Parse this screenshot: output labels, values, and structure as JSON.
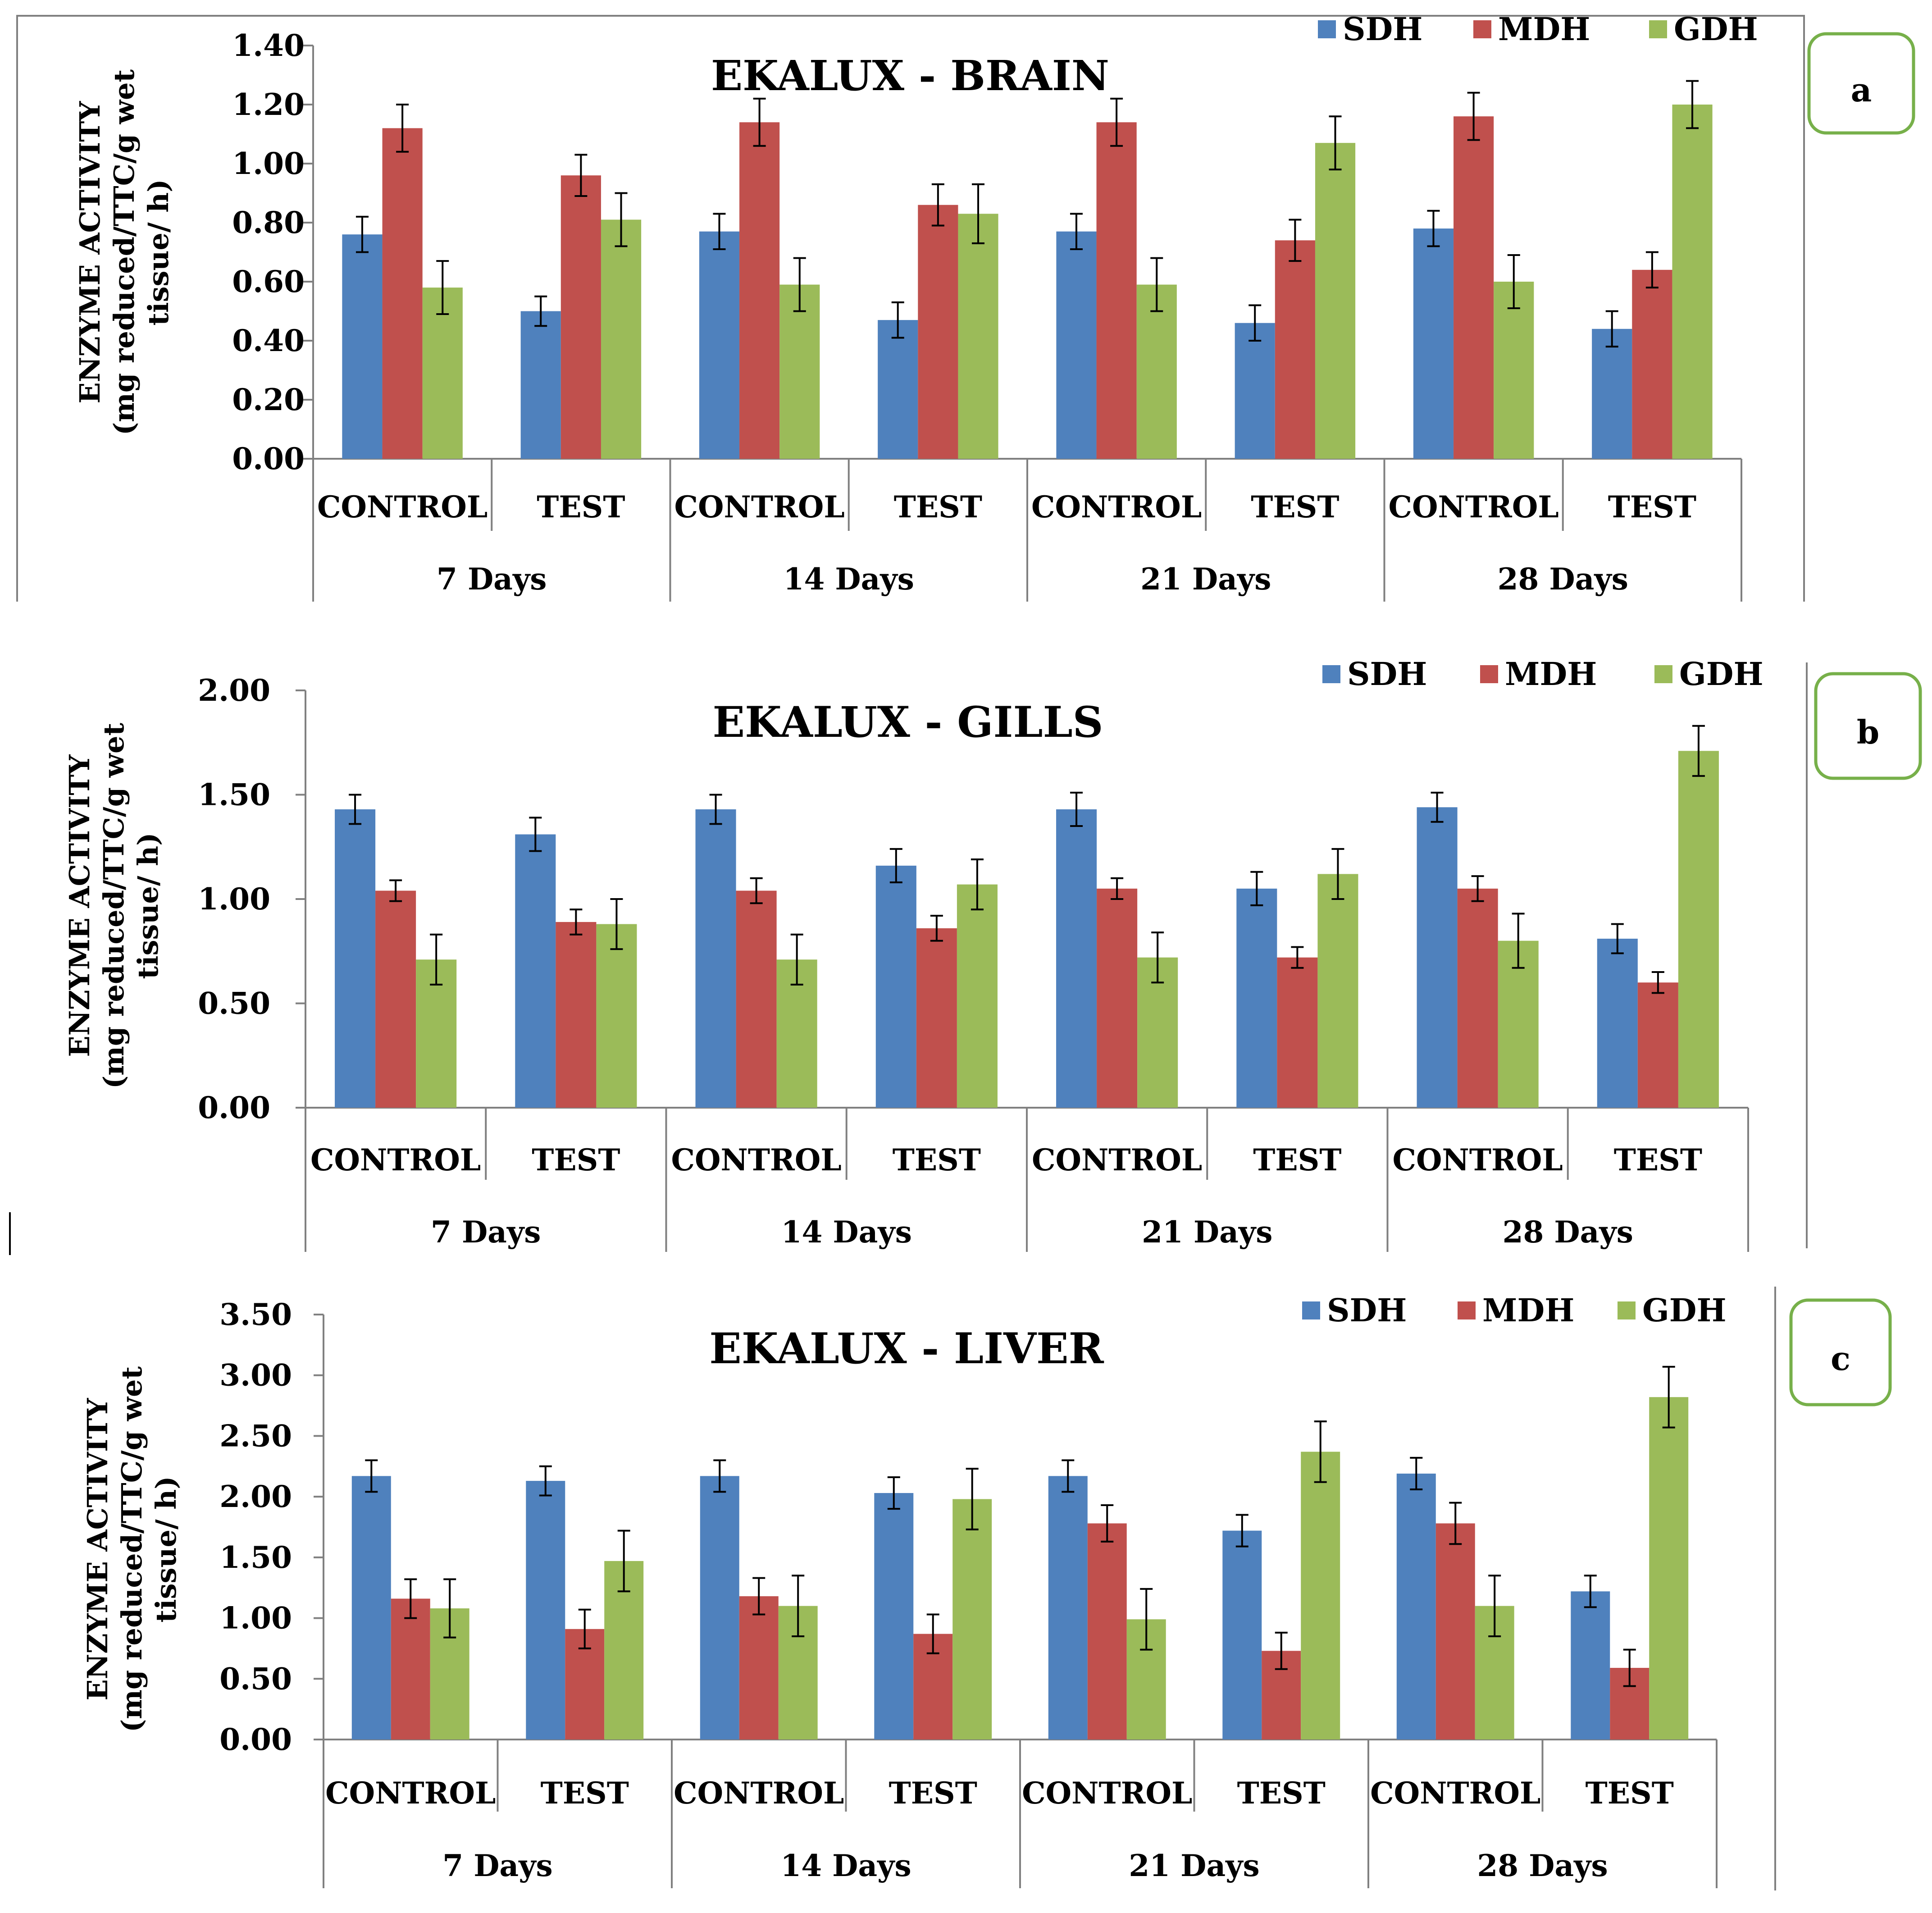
{
  "chart_data": [
    {
      "type": "bar",
      "panel_label": "a",
      "title": "EKALUX - BRAIN",
      "ylabel_lines": [
        "ENZYME ACTIVITY",
        "(mg reduced/TTC/g wet",
        "tissue/ h)"
      ],
      "ylim": [
        0,
        1.4
      ],
      "yticks": [
        "0.00",
        "0.20",
        "0.40",
        "0.60",
        "0.80",
        "1.00",
        "1.20",
        "1.40"
      ],
      "groups": [
        "7 Days",
        "14 Days",
        "21 Days",
        "28 Days"
      ],
      "categories": [
        "CONTROL",
        "TEST",
        "CONTROL",
        "TEST",
        "CONTROL",
        "TEST",
        "CONTROL",
        "TEST"
      ],
      "legend": [
        "SDH",
        "MDH",
        "GDH"
      ],
      "series": [
        {
          "name": "SDH",
          "color": "#4F81BD",
          "values": [
            0.76,
            0.5,
            0.77,
            0.47,
            0.77,
            0.46,
            0.78,
            0.44
          ],
          "errors": [
            0.06,
            0.05,
            0.06,
            0.06,
            0.06,
            0.06,
            0.06,
            0.06
          ]
        },
        {
          "name": "MDH",
          "color": "#C0504D",
          "values": [
            1.12,
            0.96,
            1.14,
            0.86,
            1.14,
            0.74,
            1.16,
            0.64
          ],
          "errors": [
            0.08,
            0.07,
            0.08,
            0.07,
            0.08,
            0.07,
            0.08,
            0.06
          ]
        },
        {
          "name": "GDH",
          "color": "#9BBB59",
          "values": [
            0.58,
            0.81,
            0.59,
            0.83,
            0.59,
            1.07,
            0.6,
            1.2
          ],
          "errors": [
            0.09,
            0.09,
            0.09,
            0.1,
            0.09,
            0.09,
            0.09,
            0.08
          ]
        }
      ]
    },
    {
      "type": "bar",
      "panel_label": "b",
      "title": "EKALUX - GILLS",
      "ylabel_lines": [
        "ENZYME ACTIVITY",
        "(mg reduced/TTC/g wet",
        "tissue/ h)"
      ],
      "ylim": [
        0,
        2.0
      ],
      "yticks": [
        "0.00",
        "0.50",
        "1.00",
        "1.50",
        "2.00"
      ],
      "groups": [
        "7 Days",
        "14 Days",
        "21 Days",
        "28 Days"
      ],
      "categories": [
        "CONTROL",
        "TEST",
        "CONTROL",
        "TEST",
        "CONTROL",
        "TEST",
        "CONTROL",
        "TEST"
      ],
      "legend": [
        "SDH",
        "MDH",
        "GDH"
      ],
      "series": [
        {
          "name": "SDH",
          "color": "#4F81BD",
          "values": [
            1.43,
            1.31,
            1.43,
            1.16,
            1.43,
            1.05,
            1.44,
            0.81
          ],
          "errors": [
            0.07,
            0.08,
            0.07,
            0.08,
            0.08,
            0.08,
            0.07,
            0.07
          ]
        },
        {
          "name": "MDH",
          "color": "#C0504D",
          "values": [
            1.04,
            0.89,
            1.04,
            0.86,
            1.05,
            0.72,
            1.05,
            0.6
          ],
          "errors": [
            0.05,
            0.06,
            0.06,
            0.06,
            0.05,
            0.05,
            0.06,
            0.05
          ]
        },
        {
          "name": "GDH",
          "color": "#9BBB59",
          "values": [
            0.71,
            0.88,
            0.71,
            1.07,
            0.72,
            1.12,
            0.8,
            1.71
          ],
          "errors": [
            0.12,
            0.12,
            0.12,
            0.12,
            0.12,
            0.12,
            0.13,
            0.12
          ]
        }
      ]
    },
    {
      "type": "bar",
      "panel_label": "c",
      "title": "EKALUX - LIVER",
      "ylabel_lines": [
        "ENZYME ACTIVITY",
        "(mg reduced/TTC/g wet",
        "tissue/ h)"
      ],
      "ylim": [
        0,
        3.5
      ],
      "yticks": [
        "0.00",
        "0.50",
        "1.00",
        "1.50",
        "2.00",
        "2.50",
        "3.00",
        "3.50"
      ],
      "groups": [
        "7 Days",
        "14 Days",
        "21 Days",
        "28 Days"
      ],
      "categories": [
        "CONTROL",
        "TEST",
        "CONTROL",
        "TEST",
        "CONTROL",
        "TEST",
        "CONTROL",
        "TEST"
      ],
      "legend": [
        "SDH",
        "MDH",
        "GDH"
      ],
      "series": [
        {
          "name": "SDH",
          "color": "#4F81BD",
          "values": [
            2.17,
            2.13,
            2.17,
            2.03,
            2.17,
            1.72,
            2.19,
            1.22
          ],
          "errors": [
            0.13,
            0.12,
            0.13,
            0.13,
            0.13,
            0.13,
            0.13,
            0.13
          ]
        },
        {
          "name": "MDH",
          "color": "#C0504D",
          "values": [
            1.16,
            0.91,
            1.18,
            0.87,
            1.78,
            0.73,
            1.78,
            0.59
          ],
          "errors": [
            0.16,
            0.16,
            0.15,
            0.16,
            0.15,
            0.15,
            0.17,
            0.15
          ]
        },
        {
          "name": "GDH",
          "color": "#9BBB59",
          "values": [
            1.08,
            1.47,
            1.1,
            1.98,
            0.99,
            2.37,
            1.1,
            2.82
          ],
          "errors": [
            0.24,
            0.25,
            0.25,
            0.25,
            0.25,
            0.25,
            0.25,
            0.25
          ]
        }
      ]
    }
  ]
}
